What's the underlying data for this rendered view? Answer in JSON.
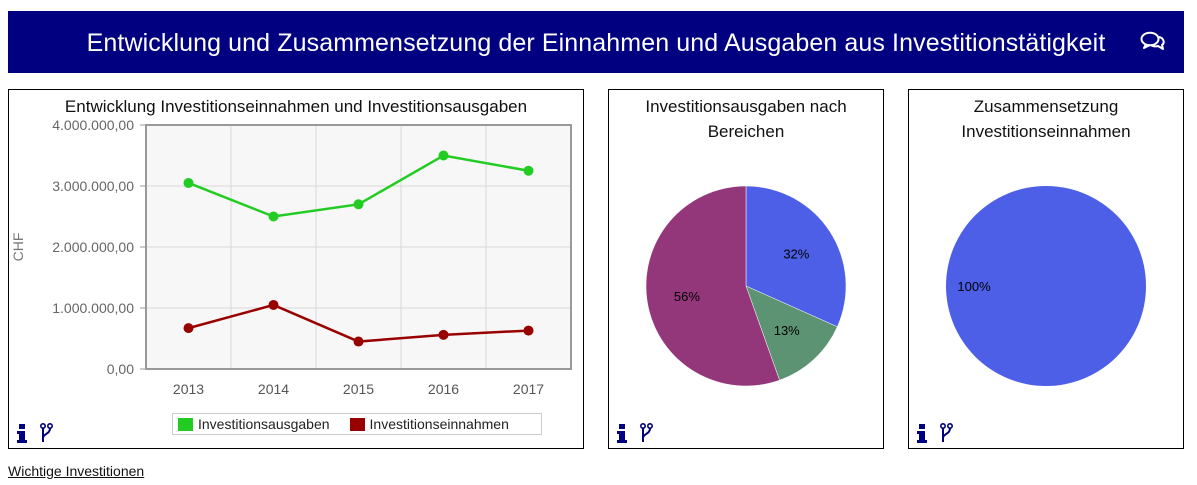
{
  "header": {
    "title": "Entwicklung und Zusammensetzung der Einnahmen und Ausgaben aus Investitionstätigkeit",
    "icon": "chat-bubbles-icon"
  },
  "footer": {
    "link_label": "Wichtige Investitionen"
  },
  "colors": {
    "header_bg": "#000080",
    "green": "#22cc22",
    "darkred": "#990000",
    "blue": "#4c5fe6",
    "purple": "#93377a",
    "teal": "#5c9473"
  },
  "chart_data": [
    {
      "type": "line",
      "title": "Entwicklung Investitionseinnahmen und Investitionsausgaben",
      "xlabel": "",
      "ylabel": "CHF",
      "categories": [
        "2013",
        "2014",
        "2015",
        "2016",
        "2017"
      ],
      "ylim": [
        0,
        4000000
      ],
      "yticks": [
        "0,00",
        "1.000.000,00",
        "2.000.000,00",
        "3.000.000,00",
        "4.000.000,00"
      ],
      "grid": true,
      "legend_position": "bottom",
      "series": [
        {
          "name": "Investitionsausgaben",
          "color": "#22cc22",
          "values": [
            3050000,
            2500000,
            2700000,
            3500000,
            3250000
          ]
        },
        {
          "name": "Investitionseinnahmen",
          "color": "#990000",
          "values": [
            670000,
            1050000,
            450000,
            560000,
            630000
          ]
        }
      ]
    },
    {
      "type": "pie",
      "title": "Investitionsausgaben nach Bereichen",
      "slices": [
        {
          "label": "32%",
          "value": 32,
          "color": "#4c5fe6"
        },
        {
          "label": "13%",
          "value": 13,
          "color": "#5c9473"
        },
        {
          "label": "56%",
          "value": 56,
          "color": "#93377a"
        }
      ]
    },
    {
      "type": "pie",
      "title": "Zusammensetzung Investitionseinnahmen",
      "slices": [
        {
          "label": "100%",
          "value": 100,
          "color": "#4c5fe6"
        }
      ]
    }
  ]
}
